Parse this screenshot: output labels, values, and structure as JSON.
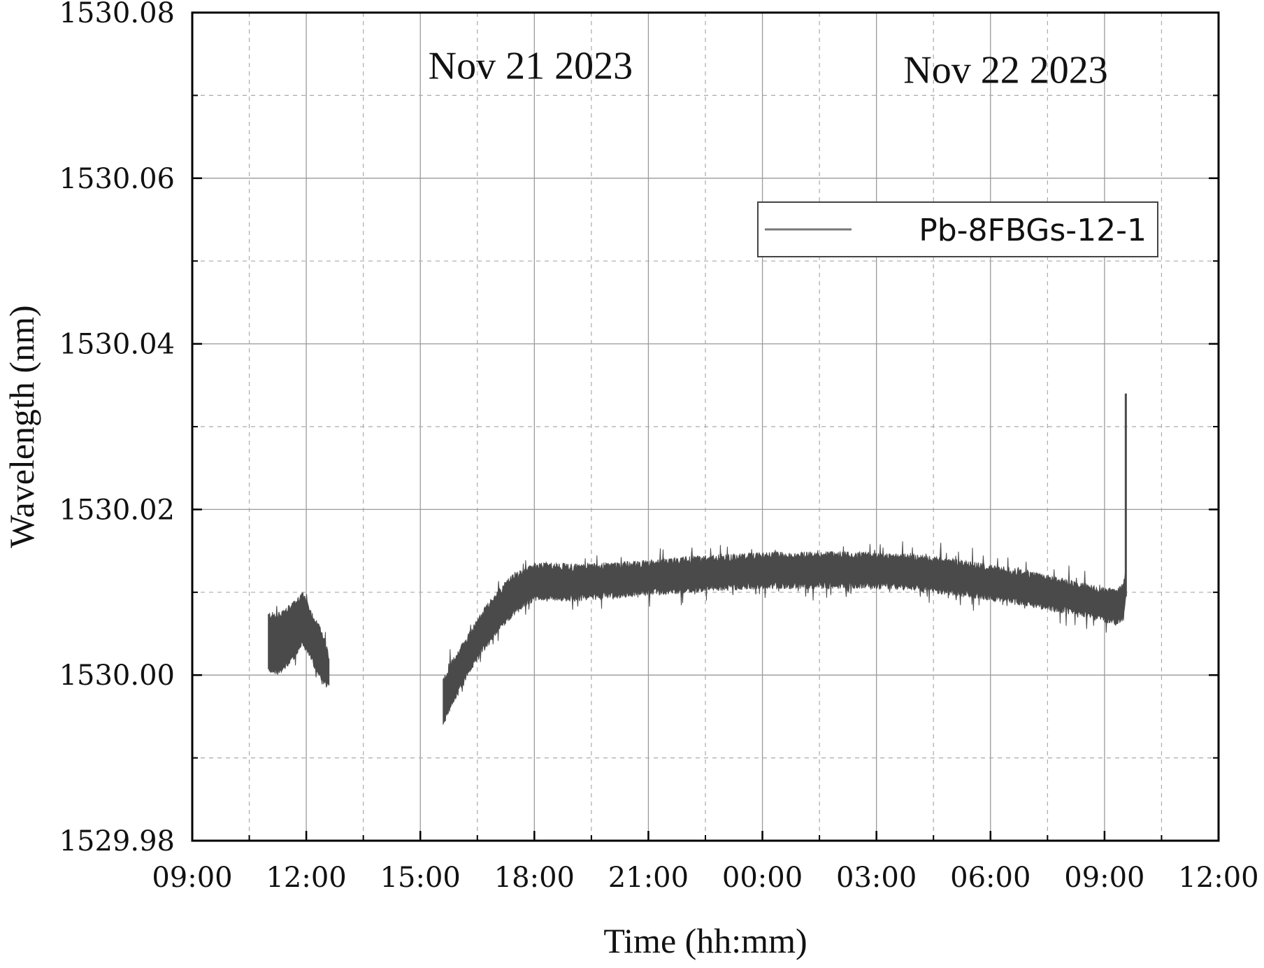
{
  "chart_data": {
    "type": "line",
    "title": "",
    "xlabel": "Time (hh:mm)",
    "ylabel": "Wavelength (nm)",
    "x_unit": "hours since Nov 21 2023 00:00",
    "xlim": [
      9,
      36
    ],
    "ylim": [
      1529.98,
      1530.08
    ],
    "xticks": [
      9,
      12,
      15,
      18,
      21,
      24,
      27,
      30,
      33,
      36
    ],
    "xtick_labels": [
      "09:00",
      "12:00",
      "15:00",
      "18:00",
      "21:00",
      "00:00",
      "03:00",
      "06:00",
      "09:00",
      "12:00"
    ],
    "yticks": [
      1529.98,
      1530.0,
      1530.02,
      1530.04,
      1530.06,
      1530.08
    ],
    "ytick_labels": [
      "1529.98",
      "1530.00",
      "1530.02",
      "1530.04",
      "1530.06",
      "1530.08"
    ],
    "grid": true,
    "legend": {
      "position": "top-right",
      "entries": [
        "Pb-8FBGs-12-1"
      ]
    },
    "annotations": [
      {
        "text": "Nov 21 2023",
        "x": 17.9,
        "y": 1530.072
      },
      {
        "text": "Nov 22 2023",
        "x": 30.4,
        "y": 1530.0715
      }
    ],
    "series": [
      {
        "name": "Pb-8FBGs-12-1",
        "color": "#4a4a4a",
        "segments": [
          {
            "x": [
              11.0,
              11.3,
              11.6,
              11.9,
              12.1,
              12.4,
              12.6
            ],
            "y_low": [
              1530.001,
              1530.0005,
              1530.002,
              1530.004,
              1530.0025,
              1529.9995,
              1529.999
            ],
            "y_high": [
              1530.007,
              1530.007,
              1530.008,
              1530.0095,
              1530.0075,
              1530.005,
              1530.002
            ]
          },
          {
            "x": [
              15.6,
              15.8,
              16.2,
              16.6,
              17.0,
              17.4,
              17.8,
              18.0,
              18.5,
              19.0,
              20.0,
              21.0,
              22.0,
              23.0,
              24.0,
              25.0,
              26.0,
              27.0,
              28.0,
              29.0,
              30.0,
              31.0,
              32.0,
              32.5,
              33.0,
              33.3,
              33.5,
              33.56
            ],
            "y_low": [
              1529.9945,
              1529.9965,
              1530.0,
              1530.003,
              1530.0055,
              1530.0075,
              1530.009,
              1530.0095,
              1530.0095,
              1530.0095,
              1530.0098,
              1530.0102,
              1530.0105,
              1530.0108,
              1530.011,
              1530.011,
              1530.011,
              1530.011,
              1530.0108,
              1530.0102,
              1530.0096,
              1530.0088,
              1530.008,
              1530.0075,
              1530.007,
              1530.0065,
              1530.007,
              1530.0095
            ],
            "y_high": [
              1529.999,
              1530.001,
              1530.004,
              1530.007,
              1530.0095,
              1530.0115,
              1530.0125,
              1530.013,
              1530.013,
              1530.0128,
              1530.013,
              1530.0133,
              1530.0137,
              1530.014,
              1530.0142,
              1530.0143,
              1530.0143,
              1530.0142,
              1530.014,
              1530.0135,
              1530.0128,
              1530.012,
              1530.011,
              1530.0105,
              1530.01,
              1530.0098,
              1530.0105,
              1530.013
            ]
          }
        ],
        "spike": {
          "x": 33.56,
          "y_from": 1530.0095,
          "y_to": 1530.034
        }
      }
    ]
  }
}
